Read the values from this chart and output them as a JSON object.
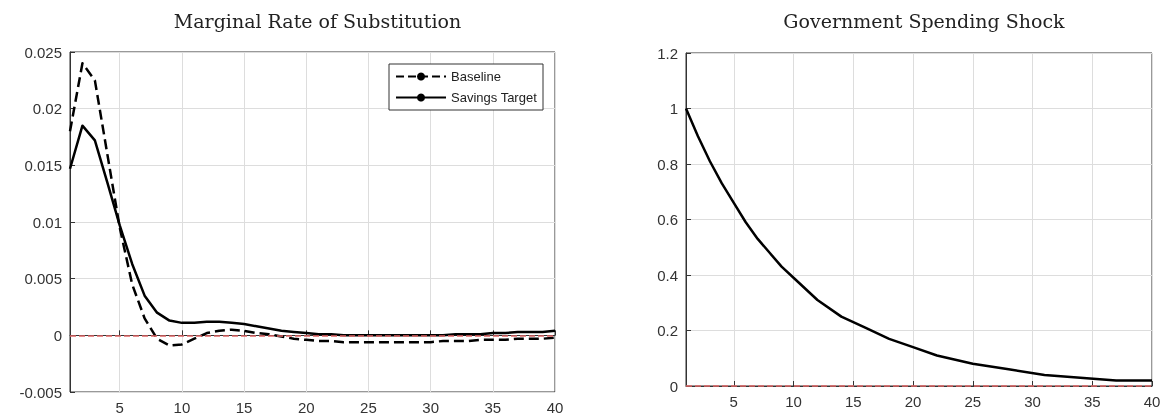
{
  "chart_data": [
    {
      "type": "line",
      "title": "Marginal Rate of Substitution",
      "x": [
        1,
        2,
        3,
        4,
        5,
        6,
        7,
        8,
        9,
        10,
        11,
        12,
        13,
        14,
        15,
        16,
        17,
        18,
        19,
        20,
        21,
        22,
        23,
        24,
        25,
        26,
        27,
        28,
        29,
        30,
        31,
        32,
        33,
        34,
        35,
        36,
        37,
        38,
        39,
        40
      ],
      "series": [
        {
          "name": "Baseline",
          "color": "#000000",
          "line_style": "dashed",
          "values": [
            0.018,
            0.024,
            0.0225,
            0.016,
            0.0095,
            0.0045,
            0.0015,
            -0.0003,
            -0.0009,
            -0.0008,
            -0.0003,
            0.0002,
            0.0004,
            0.0005,
            0.0004,
            0.0002,
            0.0001,
            -0.0001,
            -0.0003,
            -0.0004,
            -0.0005,
            -0.0005,
            -0.0006,
            -0.0006,
            -0.0006,
            -0.0006,
            -0.0006,
            -0.0006,
            -0.0006,
            -0.0006,
            -0.0005,
            -0.0005,
            -0.0005,
            -0.0004,
            -0.0004,
            -0.0004,
            -0.0003,
            -0.0003,
            -0.0003,
            -0.0002
          ]
        },
        {
          "name": "Savings Target",
          "color": "#000000",
          "line_style": "solid",
          "values": [
            0.0147,
            0.0185,
            0.0172,
            0.0135,
            0.0097,
            0.0063,
            0.0035,
            0.002,
            0.0013,
            0.0011,
            0.0011,
            0.0012,
            0.0012,
            0.0011,
            0.001,
            0.0008,
            0.0006,
            0.0004,
            0.0003,
            0.0002,
            0.0001,
            0.0001,
            0,
            0,
            0,
            0,
            0,
            0,
            0,
            0,
            0,
            0.0001,
            0.0001,
            0.0001,
            0.0002,
            0.0002,
            0.0003,
            0.0003,
            0.0003,
            0.0004
          ]
        }
      ],
      "xlim": [
        1,
        40
      ],
      "xticks": [
        5,
        10,
        15,
        20,
        25,
        30,
        35,
        40
      ],
      "ylim": [
        -0.005,
        0.025
      ],
      "yticks": [
        -0.005,
        0,
        0.005,
        0.01,
        0.015,
        0.02,
        0.025
      ],
      "ref_lines": [
        {
          "axis": "y",
          "value": 0,
          "color": "#e06666",
          "line_style": "dashed"
        }
      ],
      "grid": true,
      "legend": "top right",
      "marker": "none"
    },
    {
      "type": "line",
      "title": "Government Spending Shock",
      "x": [
        1,
        2,
        3,
        4,
        5,
        6,
        7,
        8,
        9,
        10,
        12,
        14,
        16,
        18,
        20,
        22,
        25,
        28,
        31,
        34,
        37,
        40
      ],
      "series": [
        {
          "color": "#000000",
          "line_style": "solid",
          "values": [
            1,
            0.9,
            0.81,
            0.73,
            0.66,
            0.59,
            0.53,
            0.48,
            0.43,
            0.39,
            0.31,
            0.25,
            0.21,
            0.17,
            0.14,
            0.11,
            0.08,
            0.06,
            0.04,
            0.03,
            0.02,
            0.02
          ]
        }
      ],
      "xlim": [
        1,
        40
      ],
      "xticks": [
        5,
        10,
        15,
        20,
        25,
        30,
        35,
        40
      ],
      "ylim": [
        0,
        1.2
      ],
      "yticks": [
        0,
        0.2,
        0.4,
        0.6,
        0.8,
        1,
        1.2
      ],
      "ref_lines": [
        {
          "axis": "y",
          "value": 0,
          "color": "#e06666",
          "line_style": "dashed"
        }
      ],
      "grid": true,
      "legend": false,
      "marker": "none"
    }
  ]
}
